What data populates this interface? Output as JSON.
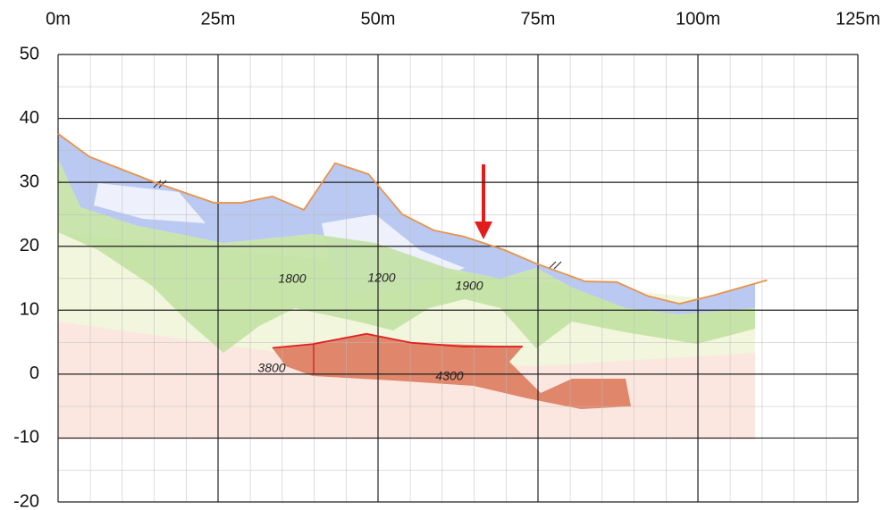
{
  "chart_data": {
    "type": "line",
    "xlim": [
      0,
      125
    ],
    "ylim": [
      -20,
      50
    ],
    "xticks": [
      {
        "value": 0,
        "label": "0m"
      },
      {
        "value": 25,
        "label": "25m"
      },
      {
        "value": 50,
        "label": "50m"
      },
      {
        "value": 75,
        "label": "75m"
      },
      {
        "value": 100,
        "label": "100m"
      },
      {
        "value": 125,
        "label": "125m"
      }
    ],
    "yticks": [
      50,
      40,
      30,
      20,
      10,
      0,
      -10,
      -20
    ],
    "grid": true,
    "series": [
      {
        "color": "#e8934a",
        "x": [
          0,
          4.9,
          15.4,
          24.4,
          28.6,
          33.5,
          38.4,
          43.3,
          48.5,
          53.8,
          58.7,
          63.5,
          69.8,
          74.7,
          82.4,
          87.3,
          92.2,
          97.1,
          102.7,
          110.8
        ],
        "values": [
          37.6,
          34,
          29.9,
          26.8,
          26.8,
          27.8,
          25.7,
          33,
          31.3,
          25,
          22.5,
          21.5,
          19.4,
          17.3,
          14.5,
          14.4,
          12.2,
          11,
          12.4,
          14.7
        ]
      },
      {
        "color": "#e02020",
        "x": [
          33.5,
          39.8,
          48.2,
          55.2,
          63.5,
          72.6
        ],
        "values": [
          4.1,
          4.7,
          6.3,
          4.9,
          4.3,
          4.3
        ]
      }
    ],
    "annotations": [
      "1800",
      "1200",
      "1900",
      "3800",
      "4300"
    ]
  }
}
